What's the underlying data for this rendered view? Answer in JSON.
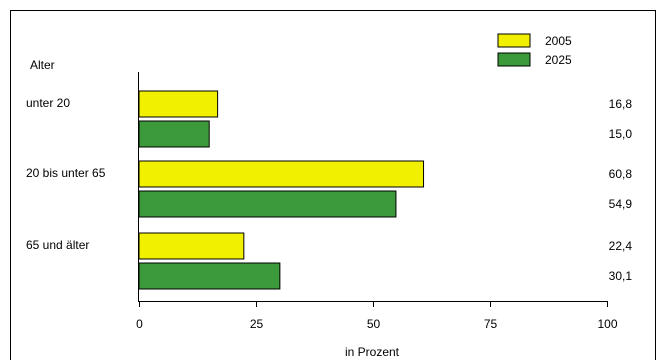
{
  "chart_data": {
    "type": "bar",
    "orientation": "horizontal",
    "ylabel": "Alter",
    "xlabel": "in Prozent",
    "categories": [
      "unter 20",
      "20 bis unter 65",
      "65 und älter"
    ],
    "series": [
      {
        "name": "2005",
        "values": [
          16.8,
          60.8,
          22.4
        ],
        "value_labels": [
          "16,8",
          "60,8",
          "22,4"
        ],
        "color": "#f0f000"
      },
      {
        "name": "2025",
        "values": [
          15.0,
          54.9,
          30.1
        ],
        "value_labels": [
          "15,0",
          "54,9",
          "30,1"
        ],
        "color": "#3d9a3a"
      }
    ],
    "xlim": [
      0,
      100
    ],
    "xticks": [
      0,
      25,
      50,
      75,
      100
    ],
    "xtick_labels": [
      "0",
      "25",
      "50",
      "75",
      "100"
    ],
    "grid": false,
    "legend_position": "top-right"
  }
}
